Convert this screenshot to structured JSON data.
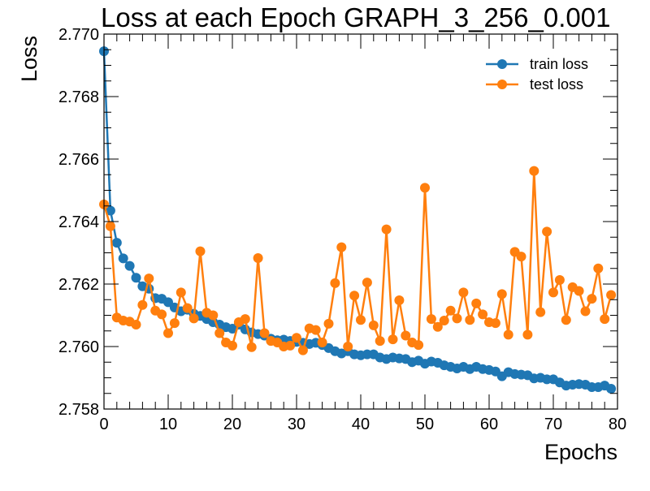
{
  "chart_data": {
    "type": "line",
    "title": "Loss at each Epoch GRAPH_3_256_0.001",
    "xlabel": "Epochs",
    "ylabel": "Loss",
    "xlim": [
      0,
      80
    ],
    "ylim": [
      2.758,
      2.77
    ],
    "xticks": [
      "0",
      "10",
      "20",
      "30",
      "40",
      "50",
      "60",
      "70",
      "80"
    ],
    "yticks": [
      "2.758",
      "2.760",
      "2.762",
      "2.764",
      "2.766",
      "2.768",
      "2.770"
    ],
    "legend_position": "top-right",
    "grid": false,
    "series": [
      {
        "name": "train loss",
        "color": "#1f77b4",
        "x": [
          0,
          1,
          2,
          3,
          4,
          5,
          6,
          7,
          8,
          9,
          10,
          11,
          12,
          13,
          14,
          15,
          16,
          17,
          18,
          19,
          20,
          21,
          22,
          23,
          24,
          25,
          26,
          27,
          28,
          29,
          30,
          31,
          32,
          33,
          34,
          35,
          36,
          37,
          38,
          39,
          40,
          41,
          42,
          43,
          44,
          45,
          46,
          47,
          48,
          49,
          50,
          51,
          52,
          53,
          54,
          55,
          56,
          57,
          58,
          59,
          60,
          61,
          62,
          63,
          64,
          65,
          66,
          67,
          68,
          69,
          70,
          71,
          72,
          73,
          74,
          75,
          76,
          77,
          78,
          79
        ],
        "y": [
          2.76945,
          2.76435,
          2.76332,
          2.76282,
          2.76258,
          2.7622,
          2.76193,
          2.76185,
          2.76155,
          2.76153,
          2.76142,
          2.76125,
          2.76113,
          2.76118,
          2.76105,
          2.76098,
          2.76088,
          2.76078,
          2.7607,
          2.76062,
          2.76057,
          2.7607,
          2.76055,
          2.76045,
          2.7604,
          2.76035,
          2.76025,
          2.7602,
          2.76022,
          2.76018,
          2.76015,
          2.76012,
          2.76008,
          2.76012,
          2.76005,
          2.75995,
          2.75985,
          2.75978,
          2.75985,
          2.75975,
          2.75972,
          2.75975,
          2.75975,
          2.75965,
          2.7596,
          2.75965,
          2.75962,
          2.7596,
          2.7595,
          2.75955,
          2.75945,
          2.75952,
          2.75948,
          2.7594,
          2.75935,
          2.7593,
          2.75935,
          2.75928,
          2.75935,
          2.75928,
          2.75925,
          2.7592,
          2.75905,
          2.75918,
          2.75912,
          2.7591,
          2.75908,
          2.75898,
          2.759,
          2.75895,
          2.75895,
          2.75885,
          2.75875,
          2.75878,
          2.7588,
          2.75878,
          2.7587,
          2.7587,
          2.75875,
          2.75865
        ]
      },
      {
        "name": "test loss",
        "color": "#ff7f0e",
        "x": [
          0,
          1,
          2,
          3,
          4,
          5,
          6,
          7,
          8,
          9,
          10,
          11,
          12,
          13,
          14,
          15,
          16,
          17,
          18,
          19,
          20,
          21,
          22,
          23,
          24,
          25,
          26,
          27,
          28,
          29,
          30,
          31,
          32,
          33,
          34,
          35,
          36,
          37,
          38,
          39,
          40,
          41,
          42,
          43,
          44,
          45,
          46,
          47,
          48,
          49,
          50,
          51,
          52,
          53,
          54,
          55,
          56,
          57,
          58,
          59,
          60,
          61,
          62,
          63,
          64,
          65,
          66,
          67,
          68,
          69,
          70,
          71,
          72,
          73,
          74,
          75,
          76,
          77,
          78,
          79
        ],
        "y": [
          2.76455,
          2.76385,
          2.76093,
          2.76083,
          2.7608,
          2.7607,
          2.76133,
          2.76218,
          2.76115,
          2.76103,
          2.76043,
          2.76075,
          2.76173,
          2.76123,
          2.7609,
          2.76305,
          2.76108,
          2.761,
          2.76043,
          2.76013,
          2.76003,
          2.76078,
          2.76088,
          2.75998,
          2.76283,
          2.76043,
          2.76018,
          2.76013,
          2.76,
          2.76003,
          2.76028,
          2.75988,
          2.76058,
          2.76053,
          2.76013,
          2.76073,
          2.76203,
          2.76318,
          2.76,
          2.76163,
          2.76085,
          2.76205,
          2.76068,
          2.76018,
          2.76375,
          2.76023,
          2.76148,
          2.76035,
          2.76013,
          2.76005,
          2.76508,
          2.76088,
          2.76063,
          2.76083,
          2.76115,
          2.7609,
          2.76173,
          2.76085,
          2.76138,
          2.76103,
          2.76078,
          2.76075,
          2.76168,
          2.76038,
          2.76303,
          2.76288,
          2.76038,
          2.76562,
          2.7611,
          2.76368,
          2.76173,
          2.76213,
          2.76085,
          2.7619,
          2.76178,
          2.76113,
          2.76153,
          2.7625,
          2.76088,
          2.76165
        ]
      }
    ]
  }
}
